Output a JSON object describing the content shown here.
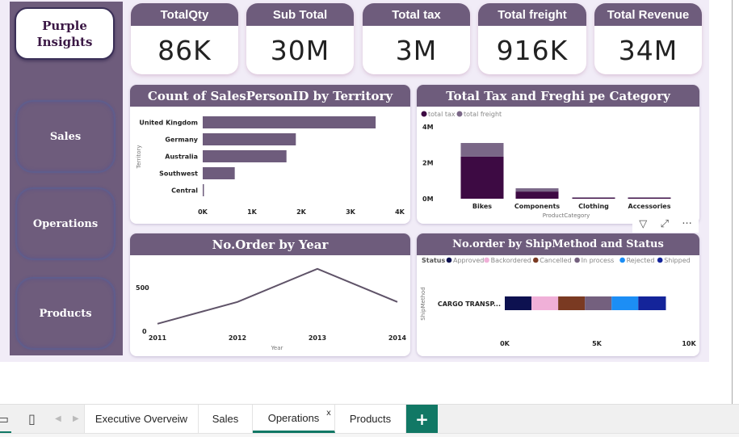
{
  "app": {
    "logo_line1": "Purple",
    "logo_line2": "Insights"
  },
  "sidebar": {
    "items": [
      {
        "label": "Sales"
      },
      {
        "label": "Operations"
      },
      {
        "label": "Products"
      }
    ]
  },
  "kpis": [
    {
      "label": "TotalQty",
      "value": "86K"
    },
    {
      "label": "Sub Total",
      "value": "30M"
    },
    {
      "label": "Total tax",
      "value": "3M"
    },
    {
      "label": "Total freight",
      "value": "916K"
    },
    {
      "label": "Total Revenue",
      "value": "34M"
    }
  ],
  "colors": {
    "brand": "#6e5c7c",
    "tax": "#3d0a43",
    "freight": "#7a6787",
    "tab_accent": "#117865"
  },
  "visual_tools": {
    "filter_icon": "filter-icon",
    "focus_icon": "focus-mode-icon",
    "more_icon": "more-options-icon"
  },
  "chart_data": [
    {
      "type": "bar",
      "orientation": "horizontal",
      "title": "Count of SalesPersonID by Territory",
      "categories": [
        "United Kingdom",
        "Germany",
        "Australia",
        "Southwest",
        "Central"
      ],
      "values": [
        3510,
        1890,
        1700,
        650,
        20
      ],
      "xlabel": "",
      "ylabel": "Territory",
      "xlim": [
        0,
        4000
      ],
      "xticks": [
        "0K",
        "1K",
        "2K",
        "3K",
        "4K"
      ],
      "grid": false
    },
    {
      "type": "bar",
      "stacked": true,
      "title": "Total Tax and Freghi pe Category",
      "categories": [
        "Bikes",
        "Components",
        "Clothing",
        "Accessories"
      ],
      "series": [
        {
          "name": "total tax",
          "values": [
            2340000,
            400000,
            40000,
            15000
          ]
        },
        {
          "name": "total freight",
          "values": [
            760000,
            180000,
            12000,
            5000
          ]
        }
      ],
      "xlabel": "ProductCategory",
      "ylabel": "",
      "ylim": [
        0,
        4000000
      ],
      "yticks": [
        "0M",
        "2M",
        "4M"
      ],
      "legend": "top-left"
    },
    {
      "type": "line",
      "title": "No.Order by Year",
      "x": [
        "2011",
        "2012",
        "2013",
        "2014"
      ],
      "values": [
        85,
        335,
        715,
        335
      ],
      "xlabel": "Year",
      "ylabel": "",
      "ylim": [
        0,
        800
      ],
      "yticks": [
        "0",
        "500"
      ]
    },
    {
      "type": "bar",
      "orientation": "horizontal",
      "stacked": true,
      "title": "No.order by ShipMethod and Status",
      "categories": [
        "CARGO TRANSP..."
      ],
      "legend_title": "Status",
      "series": [
        {
          "name": "Approved",
          "color": "#0d1150",
          "values": [
            1450
          ]
        },
        {
          "name": "Backordered",
          "color": "#f0b0d8",
          "values": [
            1450
          ]
        },
        {
          "name": "Cancelled",
          "color": "#7a3a22",
          "values": [
            1450
          ]
        },
        {
          "name": "In process",
          "color": "#74607e",
          "values": [
            1450
          ]
        },
        {
          "name": "Rejected",
          "color": "#1c8ef5",
          "values": [
            1450
          ]
        },
        {
          "name": "Shipped",
          "color": "#14249a",
          "values": [
            1500
          ]
        }
      ],
      "xlabel": "",
      "ylabel": "ShipMethod",
      "xlim": [
        0,
        10000
      ],
      "xticks": [
        "0K",
        "5K",
        "10K"
      ],
      "legend": "top-left"
    }
  ],
  "tabbar": {
    "tabs": [
      {
        "label": "Executive Overveiw"
      },
      {
        "label": "Sales"
      },
      {
        "label": "Operations",
        "active": true
      },
      {
        "label": "Products"
      }
    ],
    "close_label": "x",
    "add_label": "+"
  }
}
